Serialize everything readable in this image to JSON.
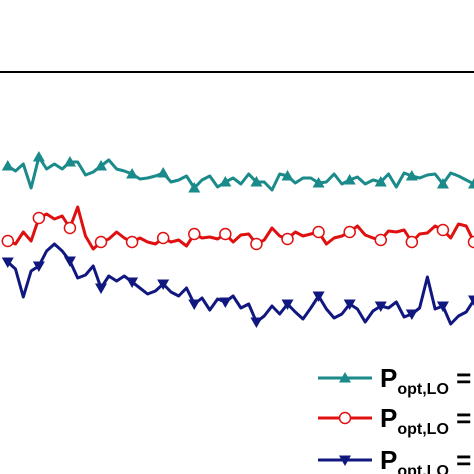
{
  "chart_data": {
    "type": "line",
    "title": "",
    "xlabel": "",
    "ylabel": "",
    "x": [
      0,
      1,
      2,
      3,
      4,
      5,
      6,
      7,
      8,
      9,
      10,
      11,
      12,
      13,
      14,
      15,
      16,
      17,
      18,
      19,
      20,
      21,
      22,
      23,
      24,
      25,
      26,
      27,
      28,
      29,
      30,
      31,
      32,
      33,
      34,
      35,
      36,
      37,
      38,
      39,
      40,
      41,
      42,
      43,
      44,
      45,
      46,
      47,
      48,
      49,
      50,
      51,
      52,
      53,
      54,
      55,
      56,
      57,
      58,
      59,
      60
    ],
    "xlim": [
      -1,
      60
    ],
    "ylim": [
      0,
      474
    ],
    "grid": false,
    "legend_position": "bottom-right",
    "marker_every": 4,
    "series": [
      {
        "name": "P",
        "name_sub": "opt,LO",
        "name_tail": " =",
        "color": "#1a8a8a",
        "marker": "triangle-up",
        "values": [
          308,
          303,
          310,
          286,
          317,
          305,
          310,
          305,
          312,
          312,
          299,
          302,
          308,
          314,
          305,
          303,
          300,
          295,
          296,
          298,
          301,
          292,
          294,
          298,
          286,
          294,
          298,
          287,
          292,
          296,
          290,
          300,
          292,
          292,
          284,
          300,
          298,
          291,
          296,
          296,
          291,
          292,
          300,
          290,
          294,
          297,
          290,
          294,
          292,
          300,
          287,
          301,
          298,
          296,
          299,
          300,
          290,
          301,
          298,
          294,
          290
        ]
      },
      {
        "name": "P",
        "name_sub": "opt,LO",
        "name_tail": " =",
        "color": "#e01010",
        "marker": "circle-open",
        "values": [
          233,
          230,
          242,
          233,
          256,
          260,
          255,
          258,
          246,
          267,
          238,
          225,
          232,
          235,
          242,
          236,
          232,
          236,
          232,
          230,
          236,
          232,
          234,
          228,
          240,
          236,
          237,
          235,
          240,
          232,
          239,
          240,
          230,
          234,
          246,
          238,
          235,
          242,
          238,
          240,
          242,
          230,
          236,
          238,
          242,
          248,
          239,
          236,
          234,
          243,
          242,
          244,
          232,
          240,
          241,
          248,
          244,
          236,
          250,
          248,
          232
        ]
      },
      {
        "name": "P",
        "name_sub": "opt,LO",
        "name_tail": " =",
        "color": "#101880",
        "marker": "triangle-down",
        "values": [
          212,
          205,
          177,
          203,
          208,
          223,
          230,
          223,
          213,
          196,
          199,
          208,
          186,
          198,
          193,
          198,
          192,
          186,
          180,
          183,
          190,
          182,
          178,
          186,
          170,
          176,
          164,
          175,
          172,
          178,
          166,
          170,
          152,
          158,
          168,
          160,
          170,
          162,
          155,
          166,
          178,
          165,
          156,
          160,
          170,
          165,
          152,
          163,
          168,
          166,
          172,
          157,
          160,
          166,
          197,
          165,
          168,
          150,
          158,
          162,
          174
        ]
      }
    ]
  }
}
